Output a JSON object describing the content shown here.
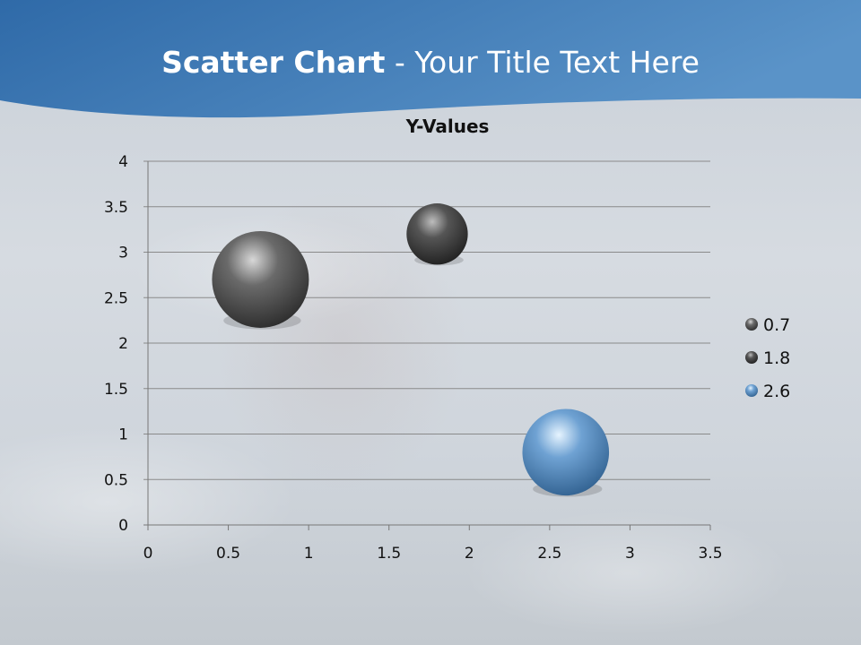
{
  "slide": {
    "title_bold": "Scatter Chart",
    "title_rest": " - Your Title Text Here"
  },
  "colors": {
    "header": "#3a78b5",
    "bubble_gray": "#5a5a5a",
    "bubble_blue": "#5d8fc0"
  },
  "chart_data": {
    "type": "bubble",
    "title": "Y-Values",
    "xlim": [
      0,
      3.5
    ],
    "ylim": [
      0,
      4
    ],
    "x_ticks": [
      "0",
      "0.5",
      "1",
      "1.5",
      "2",
      "2.5",
      "3",
      "3.5"
    ],
    "y_ticks": [
      "0",
      "0.5",
      "1",
      "1.5",
      "2",
      "2.5",
      "3",
      "3.5",
      "4"
    ],
    "grid": "horizontal",
    "legend_position": "right",
    "series": [
      {
        "name": "0.7",
        "x": 0.7,
        "y": 2.7,
        "size": 10,
        "color": "#5a5a5a"
      },
      {
        "name": "1.8",
        "x": 1.8,
        "y": 3.2,
        "size": 4,
        "color": "#4a4a4a"
      },
      {
        "name": "2.6",
        "x": 2.6,
        "y": 0.8,
        "size": 8,
        "color": "#5d8fc0"
      }
    ]
  }
}
